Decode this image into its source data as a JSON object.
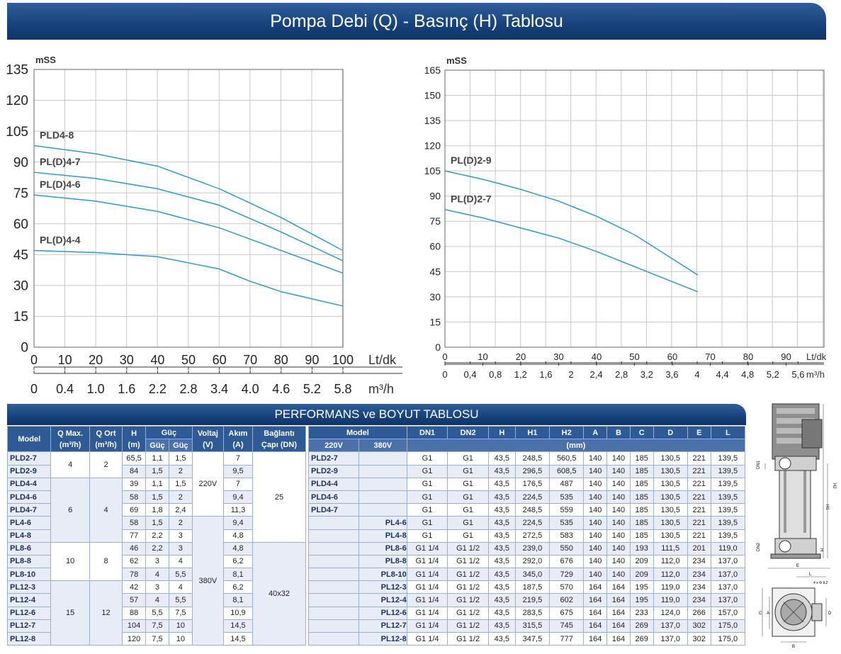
{
  "page_title": "Pompa Debi (Q) - Basınç (H) Tablosu",
  "chart_data": [
    {
      "type": "line",
      "ylabel": "mSS",
      "ylim": [
        0,
        135
      ],
      "yticks": [
        "0",
        "15",
        "30",
        "45",
        "60",
        "75",
        "90",
        "105",
        "120",
        "135"
      ],
      "xlabel": "Lt/dk",
      "xlim": [
        0,
        100
      ],
      "xticks": [
        "0",
        "10",
        "20",
        "30",
        "40",
        "50",
        "60",
        "70",
        "80",
        "90",
        "100"
      ],
      "x2label": "m³/h",
      "x2ticks": [
        "0",
        "0.4",
        "1.0",
        "1.6",
        "2.2",
        "2.8",
        "3.4",
        "4.0",
        "4.6",
        "5.2",
        "5.8"
      ],
      "series": [
        {
          "name": "PLD4-8",
          "x": [
            0,
            20,
            40,
            60,
            80,
            100
          ],
          "values": [
            98,
            94,
            88,
            77,
            63,
            47
          ]
        },
        {
          "name": "PL(D)4-7",
          "x": [
            0,
            20,
            40,
            60,
            80,
            100
          ],
          "values": [
            85,
            82,
            77,
            69,
            56,
            42
          ]
        },
        {
          "name": "PL(D)4-6",
          "x": [
            0,
            20,
            40,
            60,
            80,
            100
          ],
          "values": [
            74,
            71,
            66,
            58,
            47,
            36
          ]
        },
        {
          "name": "PL(D)4-4",
          "x": [
            0,
            20,
            40,
            60,
            70,
            80,
            100
          ],
          "values": [
            47,
            46,
            44,
            38,
            32,
            27,
            20
          ]
        }
      ]
    },
    {
      "type": "line",
      "ylabel": "mSS",
      "ylim": [
        0,
        165
      ],
      "yticks": [
        "0",
        "15",
        "30",
        "45",
        "60",
        "75",
        "90",
        "105",
        "120",
        "135",
        "150",
        "165"
      ],
      "xlabel": "Lt/dk",
      "xlim": [
        0,
        100
      ],
      "xticks": [
        "0",
        "10",
        "20",
        "30",
        "40",
        "50",
        "60",
        "70",
        "80",
        "90"
      ],
      "x2label": "m³/h",
      "x2ticks": [
        "0",
        "0,4",
        "0,8",
        "1,2",
        "1,6",
        "2",
        "2,4",
        "2,8",
        "3,2",
        "3,6",
        "4",
        "4,4",
        "4,8",
        "5,2",
        "5,6"
      ],
      "series": [
        {
          "name": "PL(D)2-9",
          "x": [
            0,
            10,
            20,
            30,
            40,
            50,
            66.7
          ],
          "values": [
            105,
            100,
            94,
            87,
            78,
            67,
            43
          ]
        },
        {
          "name": "PL(D)2-7",
          "x": [
            0,
            10,
            20,
            30,
            40,
            50,
            66.7
          ],
          "values": [
            82,
            77,
            71,
            65,
            57,
            48,
            33
          ]
        }
      ]
    }
  ],
  "performance": {
    "title": "PERFORMANS ve BOYUT TABLOSU",
    "headers": {
      "model": "Model",
      "qmax": "Q Max.",
      "qmax_unit": "(m³/h)",
      "qort": "Q Ort",
      "qort_unit": "(m³/h)",
      "h": "H",
      "h_unit": "(m)",
      "guc": "Güç",
      "guc1": "Güç",
      "guc2": "Güç",
      "voltaj": "Voltaj",
      "voltaj_unit": "(V)",
      "akim": "Akım",
      "akim_unit": "(A)",
      "baglanti": "Bağlantı",
      "baglanti_unit": "Çapı (DN)"
    },
    "voltages": [
      "220V",
      "380V"
    ],
    "connections": [
      "25",
      "40x32"
    ],
    "rows": [
      {
        "model": "PLD2-7",
        "h": "65,5",
        "g1": "1,1",
        "g2": "1,5",
        "a": "7"
      },
      {
        "model": "PLD2-9",
        "h": "84",
        "g1": "1,5",
        "g2": "2",
        "a": "9,5"
      },
      {
        "model": "PLD4-4",
        "h": "39",
        "g1": "1,1",
        "g2": "1,5",
        "a": "7"
      },
      {
        "model": "PLD4-6",
        "h": "58",
        "g1": "1,5",
        "g2": "2",
        "a": "9,4"
      },
      {
        "model": "PLD4-7",
        "h": "69",
        "g1": "1,8",
        "g2": "2,4",
        "a": "11,3"
      },
      {
        "model": "PL4-6",
        "h": "58",
        "g1": "1,5",
        "g2": "2",
        "a": "9,4"
      },
      {
        "model": "PL4-8",
        "h": "77",
        "g1": "2,2",
        "g2": "3",
        "a": "4,8"
      },
      {
        "model": "PL8-6",
        "h": "46",
        "g1": "2,2",
        "g2": "3",
        "a": "4,8"
      },
      {
        "model": "PL8-8",
        "h": "62",
        "g1": "3",
        "g2": "4",
        "a": "6,2"
      },
      {
        "model": "PL8-10",
        "h": "78",
        "g1": "4",
        "g2": "5,5",
        "a": "8,1"
      },
      {
        "model": "PL12-3",
        "h": "42",
        "g1": "3",
        "g2": "4",
        "a": "6,2"
      },
      {
        "model": "PL12-4",
        "h": "57",
        "g1": "4",
        "g2": "5,5",
        "a": "8,1"
      },
      {
        "model": "PL12-6",
        "h": "88",
        "g1": "5,5",
        "g2": "7,5",
        "a": "10,9"
      },
      {
        "model": "PL12-7",
        "h": "104",
        "g1": "7,5",
        "g2": "10",
        "a": "14,5"
      },
      {
        "model": "PL12-8",
        "h": "120",
        "g1": "7,5",
        "g2": "10",
        "a": "14,5"
      }
    ],
    "qgroups": [
      {
        "qmax": "4",
        "qort": "2"
      },
      {
        "qmax": "6",
        "qort": "4"
      },
      {
        "qmax": "10",
        "qort": "8"
      },
      {
        "qmax": "15",
        "qort": "12"
      }
    ]
  },
  "dimensions": {
    "headers": {
      "model": "Model",
      "v220": "220V",
      "v380": "380V",
      "dn1": "DN1",
      "dn2": "DN2",
      "h": "H",
      "h1": "H1",
      "h2": "H2",
      "a": "A",
      "b": "B",
      "c": "C",
      "d": "D",
      "e": "E",
      "l": "L",
      "unit": "(mm)"
    },
    "rows": [
      {
        "m220": "PLD2-7",
        "m380": "",
        "dn1": "G1",
        "dn2": "G1",
        "h": "43,5",
        "h1": "248,5",
        "h2": "560,5",
        "a": "140",
        "b": "140",
        "c": "185",
        "d": "130,5",
        "e": "221",
        "l": "139,5"
      },
      {
        "m220": "PLD2-9",
        "m380": "",
        "dn1": "G1",
        "dn2": "G1",
        "h": "43,5",
        "h1": "296,5",
        "h2": "608,5",
        "a": "140",
        "b": "140",
        "c": "185",
        "d": "130,5",
        "e": "221",
        "l": "139,5"
      },
      {
        "m220": "PLD4-4",
        "m380": "",
        "dn1": "G1",
        "dn2": "G1",
        "h": "43,5",
        "h1": "176,5",
        "h2": "487",
        "a": "140",
        "b": "140",
        "c": "185",
        "d": "130,5",
        "e": "221",
        "l": "139,5"
      },
      {
        "m220": "PLD4-6",
        "m380": "",
        "dn1": "G1",
        "dn2": "G1",
        "h": "43,5",
        "h1": "224,5",
        "h2": "535",
        "a": "140",
        "b": "140",
        "c": "185",
        "d": "130,5",
        "e": "221",
        "l": "139,5"
      },
      {
        "m220": "PLD4-7",
        "m380": "",
        "dn1": "G1",
        "dn2": "G1",
        "h": "43,5",
        "h1": "248,5",
        "h2": "559",
        "a": "140",
        "b": "140",
        "c": "185",
        "d": "130,5",
        "e": "221",
        "l": "139,5"
      },
      {
        "m220": "",
        "m380": "PL4-6",
        "dn1": "G1",
        "dn2": "G1",
        "h": "43,5",
        "h1": "224,5",
        "h2": "535",
        "a": "140",
        "b": "140",
        "c": "185",
        "d": "130,5",
        "e": "221",
        "l": "139,5"
      },
      {
        "m220": "",
        "m380": "PL4-8",
        "dn1": "G1",
        "dn2": "G1",
        "h": "43,5",
        "h1": "272,5",
        "h2": "583",
        "a": "140",
        "b": "140",
        "c": "185",
        "d": "130,5",
        "e": "221",
        "l": "139,5"
      },
      {
        "m220": "",
        "m380": "PL8-6",
        "dn1": "G1 1/4",
        "dn2": "G1 1/2",
        "h": "43,5",
        "h1": "239,0",
        "h2": "550",
        "a": "140",
        "b": "140",
        "c": "193",
        "d": "111,5",
        "e": "201",
        "l": "119,0"
      },
      {
        "m220": "",
        "m380": "PL8-8",
        "dn1": "G1 1/4",
        "dn2": "G1 1/2",
        "h": "43,5",
        "h1": "292,0",
        "h2": "676",
        "a": "140",
        "b": "140",
        "c": "209",
        "d": "112,0",
        "e": "234",
        "l": "137,0"
      },
      {
        "m220": "",
        "m380": "PL8-10",
        "dn1": "G1 1/4",
        "dn2": "G1 1/2",
        "h": "43,5",
        "h1": "345,0",
        "h2": "729",
        "a": "140",
        "b": "140",
        "c": "209",
        "d": "112,0",
        "e": "234",
        "l": "137,0"
      },
      {
        "m220": "",
        "m380": "PL12-3",
        "dn1": "G1 1/4",
        "dn2": "G1 1/2",
        "h": "43,5",
        "h1": "187,5",
        "h2": "570",
        "a": "164",
        "b": "164",
        "c": "195",
        "d": "119,0",
        "e": "234",
        "l": "137,0"
      },
      {
        "m220": "",
        "m380": "PL12-4",
        "dn1": "G1 1/4",
        "dn2": "G1 1/2",
        "h": "43,5",
        "h1": "219,5",
        "h2": "602",
        "a": "164",
        "b": "164",
        "c": "195",
        "d": "119,0",
        "e": "234",
        "l": "137,0"
      },
      {
        "m220": "",
        "m380": "PL12-6",
        "dn1": "G1 1/4",
        "dn2": "G1 1/2",
        "h": "43,5",
        "h1": "283,5",
        "h2": "675",
        "a": "164",
        "b": "164",
        "c": "233",
        "d": "124,0",
        "e": "266",
        "l": "157,0"
      },
      {
        "m220": "",
        "m380": "PL12-7",
        "dn1": "G1 1/4",
        "dn2": "G1 1/2",
        "h": "43,5",
        "h1": "315,5",
        "h2": "745",
        "a": "164",
        "b": "164",
        "c": "269",
        "d": "137,0",
        "e": "302",
        "l": "175,0"
      },
      {
        "m220": "",
        "m380": "PL12-8",
        "dn1": "G1 1/4",
        "dn2": "G1 1/2",
        "h": "43,5",
        "h1": "347,5",
        "h2": "777",
        "a": "164",
        "b": "164",
        "c": "269",
        "d": "137,0",
        "e": "302",
        "l": "175,0"
      }
    ]
  },
  "drawing_labels": {
    "dn1": "DN1",
    "dn2": "DN2",
    "h": "H",
    "h1": "H1",
    "h2": "H2",
    "e": "E",
    "l": "L",
    "a": "A",
    "b": "B",
    "c": "C",
    "d": "D",
    "holes": "4 x Φ 9,2"
  },
  "colors": {
    "curve": "#2f9ac8",
    "banner": "#17427b",
    "grid": "#c8c8c8"
  }
}
